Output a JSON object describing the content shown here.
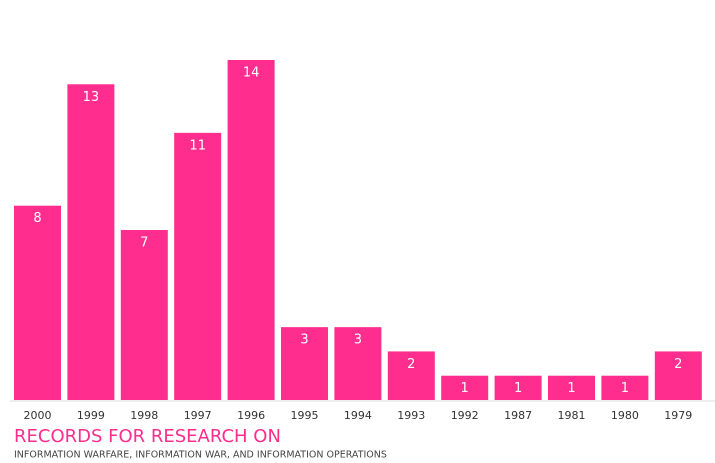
{
  "chart_data": {
    "type": "bar",
    "title": "RECORDS FOR RESEARCH ON",
    "subtitle": "INFORMATION WARFARE, INFORMATION WAR, AND INFORMATION OPERATIONS",
    "categories": [
      "2000",
      "1999",
      "1998",
      "1997",
      "1996",
      "1995",
      "1994",
      "1993",
      "1992",
      "1987",
      "1981",
      "1980",
      "1979"
    ],
    "values": [
      8,
      13,
      7,
      11,
      14,
      3,
      3,
      2,
      1,
      1,
      1,
      1,
      2
    ],
    "color": "#ff2d8e"
  }
}
